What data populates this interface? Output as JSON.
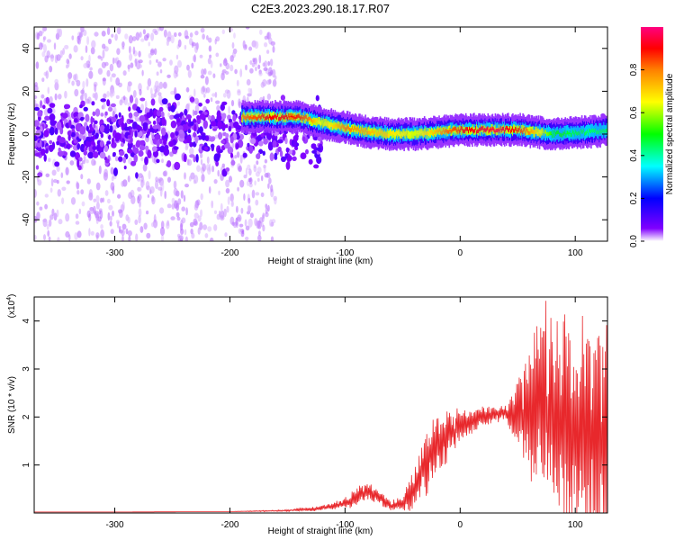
{
  "figure": {
    "title": "C2E3.2023.290.18.17.R07"
  },
  "chart_data": [
    {
      "type": "heatmap",
      "xlabel": "Height of straight line (km)",
      "ylabel": "Frequency (Hz)",
      "xlim": [
        -370,
        128
      ],
      "ylim": [
        -50,
        50
      ],
      "xticks": [
        -300,
        -200,
        -100,
        0,
        100
      ],
      "yticks": [
        -40,
        -20,
        0,
        20,
        40
      ],
      "colorbar": {
        "label": "Normalized spectral amplitude",
        "range": [
          0,
          1
        ],
        "ticks": [
          "0.0",
          "0.2",
          "0.4",
          "0.6",
          "0.8"
        ],
        "colormap": [
          "#ffffff",
          "#8000ff",
          "#0000ff",
          "#00ffff",
          "#00ff00",
          "#ffff00",
          "#ff8000",
          "#ff0000",
          "#ff0080"
        ]
      },
      "ridge": [
        {
          "x": -190,
          "f": 8,
          "amp": 0.75
        },
        {
          "x": -170,
          "f": 8,
          "amp": 0.85
        },
        {
          "x": -160,
          "f": 8,
          "amp": 0.9
        },
        {
          "x": -140,
          "f": 8,
          "amp": 0.85
        },
        {
          "x": -120,
          "f": 5,
          "amp": 0.6
        },
        {
          "x": -100,
          "f": 3,
          "amp": 0.75
        },
        {
          "x": -80,
          "f": 1,
          "amp": 0.7
        },
        {
          "x": -60,
          "f": 0,
          "amp": 0.65
        },
        {
          "x": -40,
          "f": 0,
          "amp": 0.6
        },
        {
          "x": -20,
          "f": 1,
          "amp": 0.7
        },
        {
          "x": 0,
          "f": 2,
          "amp": 0.85
        },
        {
          "x": 30,
          "f": 2,
          "amp": 0.95
        },
        {
          "x": 50,
          "f": 2,
          "amp": 0.85
        },
        {
          "x": 80,
          "f": 0,
          "amp": 0.5
        },
        {
          "x": 110,
          "f": 1,
          "amp": 0.45
        },
        {
          "x": 128,
          "f": 2,
          "amp": 0.45
        }
      ],
      "noise_region": {
        "x": [
          -370,
          -160
        ],
        "f": [
          -50,
          50
        ]
      }
    },
    {
      "type": "line",
      "xlabel": "Height of straight line (km)",
      "ylabel": "SNR (10 * v/v)",
      "yscale_label": "(x10",
      "yscale_exp": "4",
      "xlim": [
        -370,
        128
      ],
      "ylim": [
        0,
        4.5
      ],
      "xticks": [
        -300,
        -200,
        -100,
        0,
        100
      ],
      "yticks": [
        1,
        2,
        3,
        4
      ],
      "series": [
        {
          "color": "#e8282c",
          "x": [
            -370,
            -300,
            -200,
            -150,
            -120,
            -100,
            -90,
            -80,
            -70,
            -60,
            -50,
            -40,
            -30,
            -20,
            -10,
            0,
            10,
            20,
            30,
            40,
            50,
            60,
            70,
            80,
            90,
            100,
            110,
            120,
            128
          ],
          "y": [
            0.02,
            0.02,
            0.03,
            0.05,
            0.1,
            0.2,
            0.35,
            0.45,
            0.3,
            0.15,
            0.2,
            0.5,
            1.0,
            1.4,
            1.6,
            1.8,
            1.9,
            2.0,
            2.05,
            2.1,
            2.0,
            2.0,
            2.3,
            2.1,
            1.8,
            1.7,
            1.5,
            1.4,
            1.5
          ],
          "spread": [
            0,
            0,
            0,
            0.02,
            0.05,
            0.1,
            0.2,
            0.2,
            0.15,
            0.1,
            0.15,
            0.4,
            0.6,
            0.7,
            0.5,
            0.35,
            0.25,
            0.2,
            0.15,
            0.15,
            0.8,
            1.5,
            1.8,
            2.0,
            2.1,
            2.3,
            2.4,
            2.5,
            2.6
          ]
        }
      ]
    }
  ]
}
